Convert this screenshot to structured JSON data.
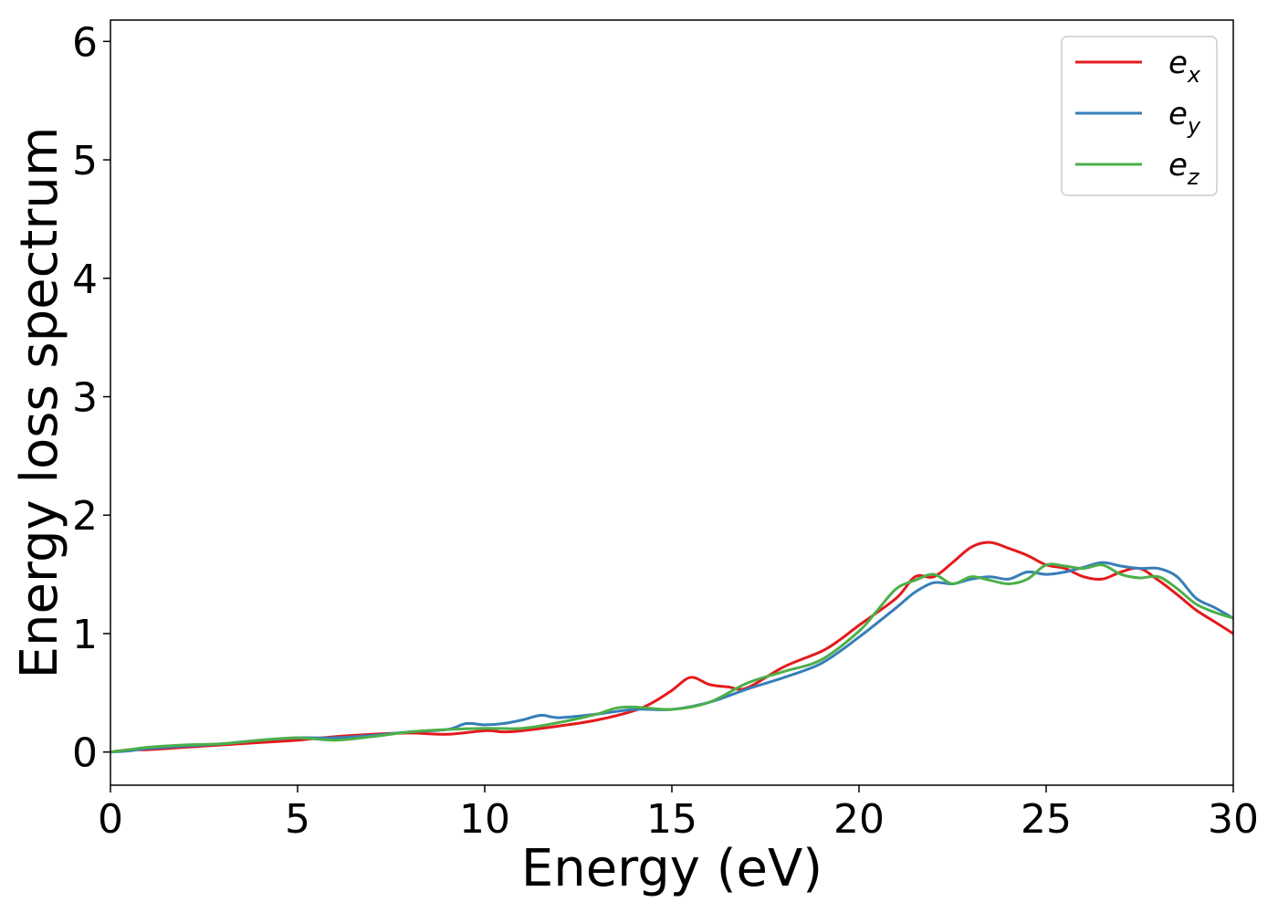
{
  "chart_data": {
    "type": "line",
    "xlabel": "Energy (eV)",
    "ylabel": "Energy loss spectrum",
    "xlim": [
      0,
      30
    ],
    "ylim": [
      -0.28,
      6.18
    ],
    "xticks": [
      0,
      5,
      10,
      15,
      20,
      25,
      30
    ],
    "yticks": [
      0,
      1,
      2,
      3,
      4,
      5,
      6
    ],
    "grid": false,
    "legend_position": "top-right",
    "series": [
      {
        "name": "e_x",
        "label_base": "e",
        "label_sub": "x",
        "color": "#e41a1c",
        "x": [
          0,
          0.5,
          1,
          2,
          3,
          4,
          5,
          6,
          7,
          8,
          9,
          10,
          10.5,
          11,
          12,
          13,
          14,
          14.5,
          15,
          15.5,
          16,
          16.5,
          17,
          18,
          19,
          19.5,
          20,
          21,
          21.5,
          22,
          22.5,
          23,
          23.5,
          24,
          24.5,
          25,
          25.5,
          26,
          26.5,
          27,
          27.5,
          28,
          28.5,
          29,
          29.5,
          30
        ],
        "y": [
          0.0,
          0.02,
          0.02,
          0.04,
          0.06,
          0.08,
          0.1,
          0.13,
          0.15,
          0.16,
          0.15,
          0.18,
          0.17,
          0.18,
          0.22,
          0.27,
          0.35,
          0.42,
          0.52,
          0.63,
          0.57,
          0.55,
          0.54,
          0.72,
          0.85,
          0.95,
          1.07,
          1.3,
          1.48,
          1.48,
          1.6,
          1.73,
          1.77,
          1.72,
          1.66,
          1.58,
          1.55,
          1.48,
          1.46,
          1.52,
          1.55,
          1.45,
          1.33,
          1.2,
          1.1,
          1.0
        ]
      },
      {
        "name": "e_y",
        "label_base": "e",
        "label_sub": "y",
        "color": "#377eb8",
        "x": [
          0,
          0.5,
          1,
          2,
          3,
          4,
          5,
          6,
          7,
          8,
          9,
          9.5,
          10,
          10.5,
          11,
          11.5,
          12,
          13,
          14,
          15,
          16,
          17,
          18,
          19,
          20,
          21,
          21.5,
          22,
          22.5,
          23,
          23.5,
          24,
          24.5,
          25,
          25.5,
          26,
          26.5,
          27,
          27.5,
          28,
          28.5,
          29,
          29.5,
          30
        ],
        "y": [
          0.0,
          0.01,
          0.03,
          0.05,
          0.07,
          0.1,
          0.12,
          0.12,
          0.14,
          0.17,
          0.19,
          0.24,
          0.23,
          0.24,
          0.27,
          0.31,
          0.29,
          0.32,
          0.36,
          0.36,
          0.42,
          0.53,
          0.63,
          0.75,
          0.97,
          1.22,
          1.35,
          1.43,
          1.42,
          1.46,
          1.48,
          1.46,
          1.52,
          1.5,
          1.52,
          1.56,
          1.6,
          1.57,
          1.55,
          1.55,
          1.48,
          1.3,
          1.22,
          1.13
        ]
      },
      {
        "name": "e_z",
        "label_base": "e",
        "label_sub": "z",
        "color": "#4daf4a",
        "x": [
          0,
          0.5,
          1,
          2,
          3,
          4,
          5,
          6,
          7,
          8,
          9,
          10,
          11,
          12,
          13,
          13.5,
          14,
          15,
          16,
          17,
          18,
          19,
          20,
          20.5,
          21,
          21.5,
          22,
          22.5,
          23,
          23.5,
          24,
          24.5,
          25,
          25.5,
          26,
          26.5,
          27,
          27.5,
          28,
          28.5,
          29,
          29.5,
          30
        ],
        "y": [
          0.0,
          0.02,
          0.04,
          0.06,
          0.07,
          0.1,
          0.12,
          0.1,
          0.13,
          0.17,
          0.19,
          0.2,
          0.2,
          0.25,
          0.32,
          0.37,
          0.38,
          0.36,
          0.42,
          0.58,
          0.68,
          0.78,
          1.02,
          1.2,
          1.38,
          1.45,
          1.5,
          1.42,
          1.48,
          1.45,
          1.42,
          1.46,
          1.58,
          1.57,
          1.55,
          1.58,
          1.5,
          1.47,
          1.48,
          1.38,
          1.25,
          1.18,
          1.13
        ]
      }
    ]
  }
}
